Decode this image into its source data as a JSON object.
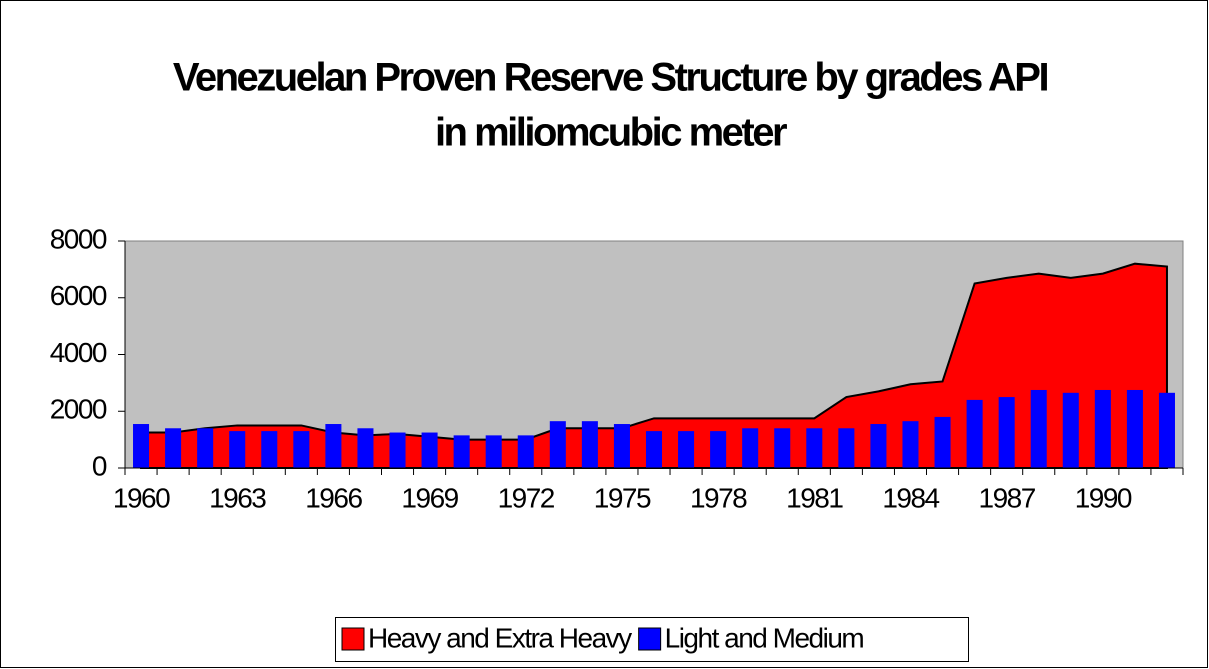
{
  "chart_data": {
    "type": "combo",
    "title": "Venezuelan Proven Reserve Structure by grades API",
    "subtitle": "in miliomcubic meter",
    "categories": [
      "1960",
      null,
      null,
      "1963",
      null,
      null,
      "1966",
      null,
      null,
      "1969",
      null,
      null,
      "1972",
      null,
      null,
      "1975",
      null,
      null,
      "1978",
      null,
      null,
      "1981",
      null,
      null,
      "1984",
      null,
      null,
      "1987",
      null,
      null,
      "1990",
      null,
      null
    ],
    "series": [
      {
        "name": "Heavy and Extra Heavy",
        "type": "area",
        "color": "#ff0000",
        "values": [
          1250,
          1250,
          1400,
          1500,
          1500,
          1500,
          1250,
          1150,
          1200,
          1100,
          1000,
          1000,
          1000,
          1400,
          1400,
          1400,
          1750,
          1750,
          1750,
          1750,
          1750,
          1750,
          2500,
          2700,
          2950,
          3050,
          6500,
          6700,
          6850,
          6700,
          6850,
          7200,
          7100
        ]
      },
      {
        "name": "Light and Medium",
        "type": "bar",
        "color": "#0000ff",
        "values": [
          1550,
          1400,
          1400,
          1300,
          1300,
          1300,
          1550,
          1400,
          1250,
          1250,
          1150,
          1150,
          1150,
          1650,
          1650,
          1550,
          1300,
          1300,
          1300,
          1400,
          1400,
          1400,
          1400,
          1550,
          1650,
          1800,
          2400,
          2500,
          2750,
          2650,
          2750,
          2750,
          2650
        ]
      }
    ],
    "ylim": [
      0,
      8000
    ],
    "yticks": [
      0,
      2000,
      4000,
      6000,
      8000
    ],
    "legend": "bottom"
  }
}
